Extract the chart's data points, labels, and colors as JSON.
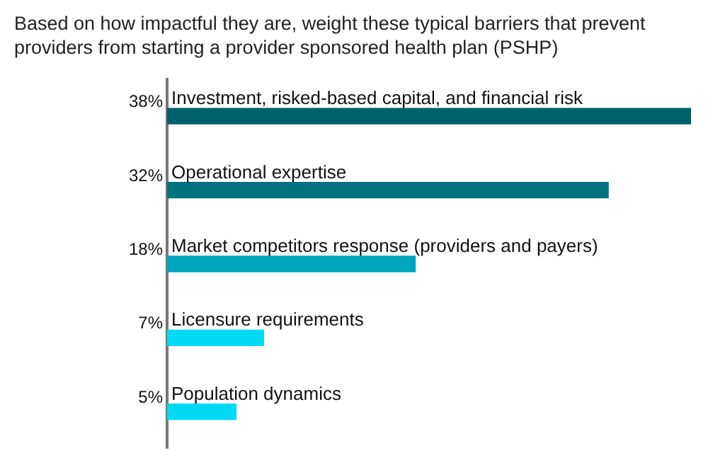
{
  "chart_data": {
    "type": "bar",
    "orientation": "horizontal",
    "title": "Based on how impactful they are, weight these typical barriers that prevent providers from starting a provider sponsored health plan (PSHP)",
    "categories": [
      "Investment, risked-based capital, and financial risk",
      "Operational expertise",
      "Market competitors response (providers and payers)",
      "Licensure requirements",
      "Population dynamics"
    ],
    "values": [
      38,
      32,
      18,
      7,
      5
    ],
    "value_labels": [
      "38%",
      "32%",
      "18%",
      "7%",
      "5%"
    ],
    "colors": [
      "#00606c",
      "#00717d",
      "#00a6bd",
      "#00d9f2",
      "#00d9f2"
    ],
    "grid": false,
    "legend": false
  }
}
